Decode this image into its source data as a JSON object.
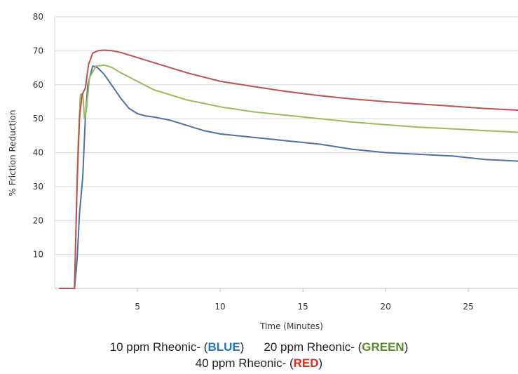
{
  "chart_data": {
    "type": "line",
    "title": "",
    "xlabel": "Time (Minutes)",
    "ylabel": "% Friction Reduction",
    "xlim": [
      0,
      28
    ],
    "ylim": [
      0,
      80
    ],
    "x_ticks": [
      5,
      10,
      15,
      20,
      25
    ],
    "y_ticks": [
      10,
      20,
      30,
      40,
      50,
      60,
      70,
      80
    ],
    "grid": "horizontal",
    "series": [
      {
        "color": "#4a72a8",
        "points": [
          [
            0.3,
            0
          ],
          [
            1.2,
            0
          ],
          [
            1.35,
            8
          ],
          [
            1.5,
            22
          ],
          [
            1.7,
            33
          ],
          [
            1.85,
            50
          ],
          [
            2.0,
            60
          ],
          [
            2.3,
            65.5
          ],
          [
            2.6,
            65
          ],
          [
            3.0,
            63
          ],
          [
            3.5,
            59.5
          ],
          [
            4.0,
            56
          ],
          [
            4.5,
            53
          ],
          [
            5.0,
            51.5
          ],
          [
            5.5,
            50.8
          ],
          [
            6.0,
            50.5
          ],
          [
            7.0,
            49.5
          ],
          [
            8.0,
            48
          ],
          [
            9.0,
            46.5
          ],
          [
            10.0,
            45.5
          ],
          [
            12.0,
            44.5
          ],
          [
            14.0,
            43.5
          ],
          [
            16.0,
            42.5
          ],
          [
            18.0,
            41
          ],
          [
            20.0,
            40
          ],
          [
            22.0,
            39.5
          ],
          [
            24.0,
            39
          ],
          [
            26.0,
            38
          ],
          [
            28.0,
            37.5
          ]
        ]
      },
      {
        "color": "#9bbb59",
        "points": [
          [
            0.3,
            0
          ],
          [
            1.2,
            0
          ],
          [
            1.4,
            40
          ],
          [
            1.55,
            57
          ],
          [
            1.7,
            57.5
          ],
          [
            1.8,
            50
          ],
          [
            1.9,
            52
          ],
          [
            2.1,
            62
          ],
          [
            2.5,
            65.5
          ],
          [
            3.0,
            65.8
          ],
          [
            3.5,
            65
          ],
          [
            4.0,
            63.5
          ],
          [
            5.0,
            61
          ],
          [
            6.0,
            58.5
          ],
          [
            8.0,
            55.5
          ],
          [
            10.0,
            53.5
          ],
          [
            12.0,
            52
          ],
          [
            14.0,
            51
          ],
          [
            16.0,
            50
          ],
          [
            18.0,
            49
          ],
          [
            20.0,
            48.2
          ],
          [
            22.0,
            47.5
          ],
          [
            24.0,
            47
          ],
          [
            26.0,
            46.5
          ],
          [
            28.0,
            46
          ]
        ]
      },
      {
        "color": "#c0504d",
        "points": [
          [
            0.3,
            0
          ],
          [
            1.2,
            0
          ],
          [
            1.35,
            30
          ],
          [
            1.5,
            50
          ],
          [
            1.65,
            57
          ],
          [
            1.85,
            59
          ],
          [
            2.05,
            66
          ],
          [
            2.3,
            69.3
          ],
          [
            2.6,
            70
          ],
          [
            3.0,
            70.2
          ],
          [
            3.5,
            70
          ],
          [
            4.0,
            69.5
          ],
          [
            5.0,
            68
          ],
          [
            6.0,
            66.5
          ],
          [
            8.0,
            63.5
          ],
          [
            10.0,
            61
          ],
          [
            12.0,
            59.5
          ],
          [
            14.0,
            58
          ],
          [
            16.0,
            56.8
          ],
          [
            18.0,
            55.8
          ],
          [
            20.0,
            55
          ],
          [
            22.0,
            54.3
          ],
          [
            24.0,
            53.7
          ],
          [
            26.0,
            53
          ],
          [
            28.0,
            52.5
          ]
        ]
      }
    ]
  },
  "legend": {
    "s10_label": "10 ppm Rheonic- (",
    "s10_color_word": "BLUE",
    "s10_close": ")",
    "s20_label": "20 ppm Rheonic- (",
    "s20_color_word": "GREEN",
    "s20_close": ")",
    "s40_label": "40 ppm Rheonic- (",
    "s40_color_word": "RED",
    "s40_close": ")"
  }
}
